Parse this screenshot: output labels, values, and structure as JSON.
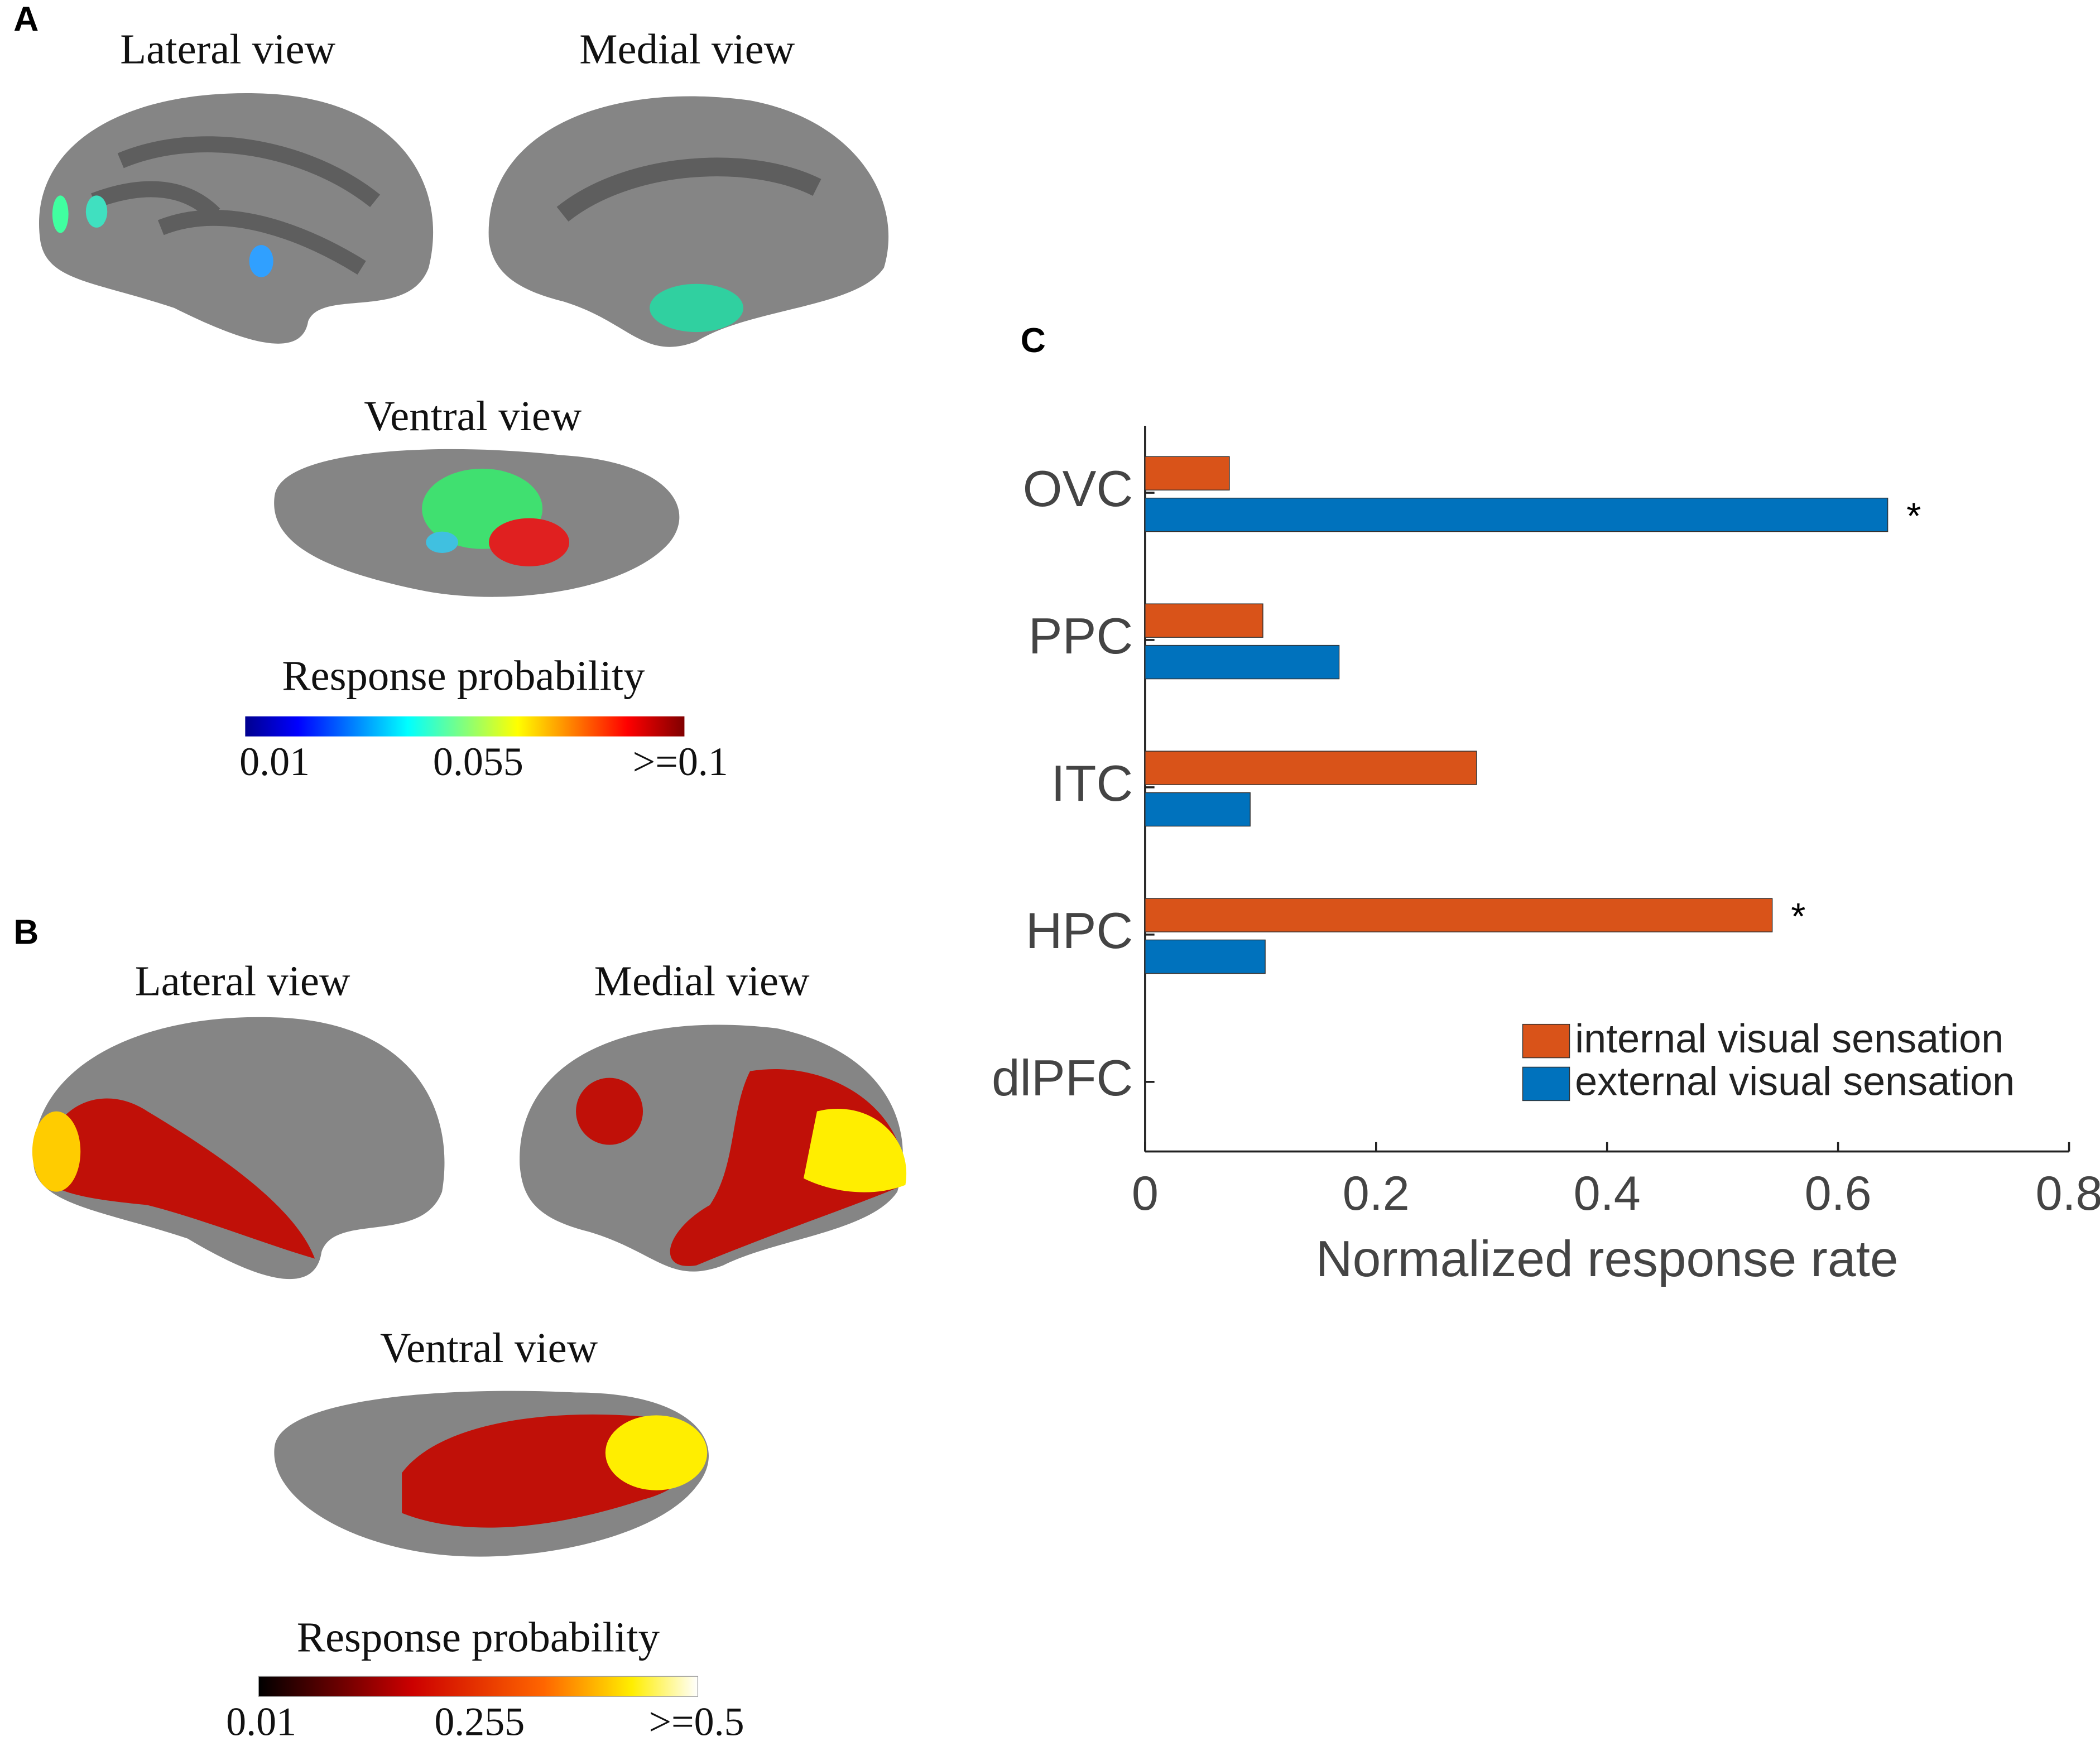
{
  "panels": {
    "A": {
      "label": "A",
      "views": [
        "Lateral view",
        "Medial view",
        "Ventral view"
      ],
      "colorbar_title": "Response probability",
      "colorbar_ticks": [
        "0.01",
        "0.055",
        ">=0.1"
      ]
    },
    "B": {
      "label": "B",
      "views": [
        "Lateral view",
        "Medial view",
        "Ventral view"
      ],
      "colorbar_title": "Response probability",
      "colorbar_ticks": [
        "0.01",
        "0.255",
        ">=0.5"
      ]
    },
    "C": {
      "label": "C"
    }
  },
  "chart_data": {
    "type": "hbar",
    "categories": [
      "OVC",
      "PPC",
      "ITC",
      "HPC",
      "dlPFC"
    ],
    "series": [
      {
        "name": "internal visual sensation",
        "color": "#d95319",
        "values": [
          0.073,
          0.102,
          0.287,
          0.543,
          0
        ]
      },
      {
        "name": "external visual sensation",
        "color": "#0072bd",
        "values": [
          0.643,
          0.168,
          0.091,
          0.104,
          0
        ]
      }
    ],
    "xlabel": "Normalized response rate",
    "xlim": [
      0,
      0.8
    ],
    "xticks": [
      0,
      0.2,
      0.4,
      0.6,
      0.8
    ],
    "grid": false,
    "legend": "lower right",
    "annotations": [
      {
        "text": "*",
        "category": 0,
        "series": 1
      },
      {
        "text": "*",
        "category": 3,
        "series": 0
      }
    ]
  }
}
